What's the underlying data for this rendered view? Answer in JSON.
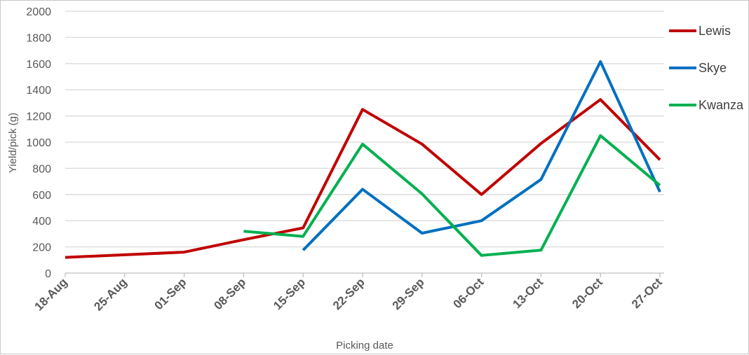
{
  "chart_data": {
    "type": "line",
    "title": "",
    "xlabel": "Picking date",
    "ylabel": "Yield/pick (g)",
    "ylim": [
      0,
      2000
    ],
    "yticks": [
      0,
      200,
      400,
      600,
      800,
      1000,
      1200,
      1400,
      1600,
      1800,
      2000
    ],
    "x_ticks": [
      "18-Aug",
      "25-Aug",
      "01-Sep",
      "08-Sep",
      "15-Sep",
      "22-Sep",
      "29-Sep",
      "06-Oct",
      "13-Oct",
      "20-Oct",
      "27-Oct"
    ],
    "grid": true,
    "legend": "right",
    "series": [
      {
        "name": "Lewis",
        "color": "#c00000",
        "points": [
          {
            "x": "18-Aug",
            "y": 120
          },
          {
            "x": "01-Sep",
            "y": 160
          },
          {
            "x": "08-Sep",
            "y": 255
          },
          {
            "x": "15-Sep",
            "y": 345
          },
          {
            "x": "22-Sep",
            "y": 1250
          },
          {
            "x": "29-Sep",
            "y": 985
          },
          {
            "x": "06-Oct",
            "y": 600
          },
          {
            "x": "13-Oct",
            "y": 990
          },
          {
            "x": "20-Oct",
            "y": 1325
          },
          {
            "x": "27-Oct",
            "y": 865
          }
        ]
      },
      {
        "name": "Skye",
        "color": "#0070c0",
        "points": [
          {
            "x": "15-Sep",
            "y": 175
          },
          {
            "x": "22-Sep",
            "y": 640
          },
          {
            "x": "29-Sep",
            "y": 305
          },
          {
            "x": "06-Oct",
            "y": 400
          },
          {
            "x": "13-Oct",
            "y": 715
          },
          {
            "x": "20-Oct",
            "y": 1615
          },
          {
            "x": "27-Oct",
            "y": 620
          }
        ]
      },
      {
        "name": "Kwanza",
        "color": "#00b050",
        "points": [
          {
            "x": "08-Sep",
            "y": 320
          },
          {
            "x": "15-Sep",
            "y": 280
          },
          {
            "x": "22-Sep",
            "y": 985
          },
          {
            "x": "29-Sep",
            "y": 605
          },
          {
            "x": "06-Oct",
            "y": 135
          },
          {
            "x": "13-Oct",
            "y": 175
          },
          {
            "x": "20-Oct",
            "y": 1050
          },
          {
            "x": "27-Oct",
            "y": 670
          }
        ]
      }
    ]
  }
}
